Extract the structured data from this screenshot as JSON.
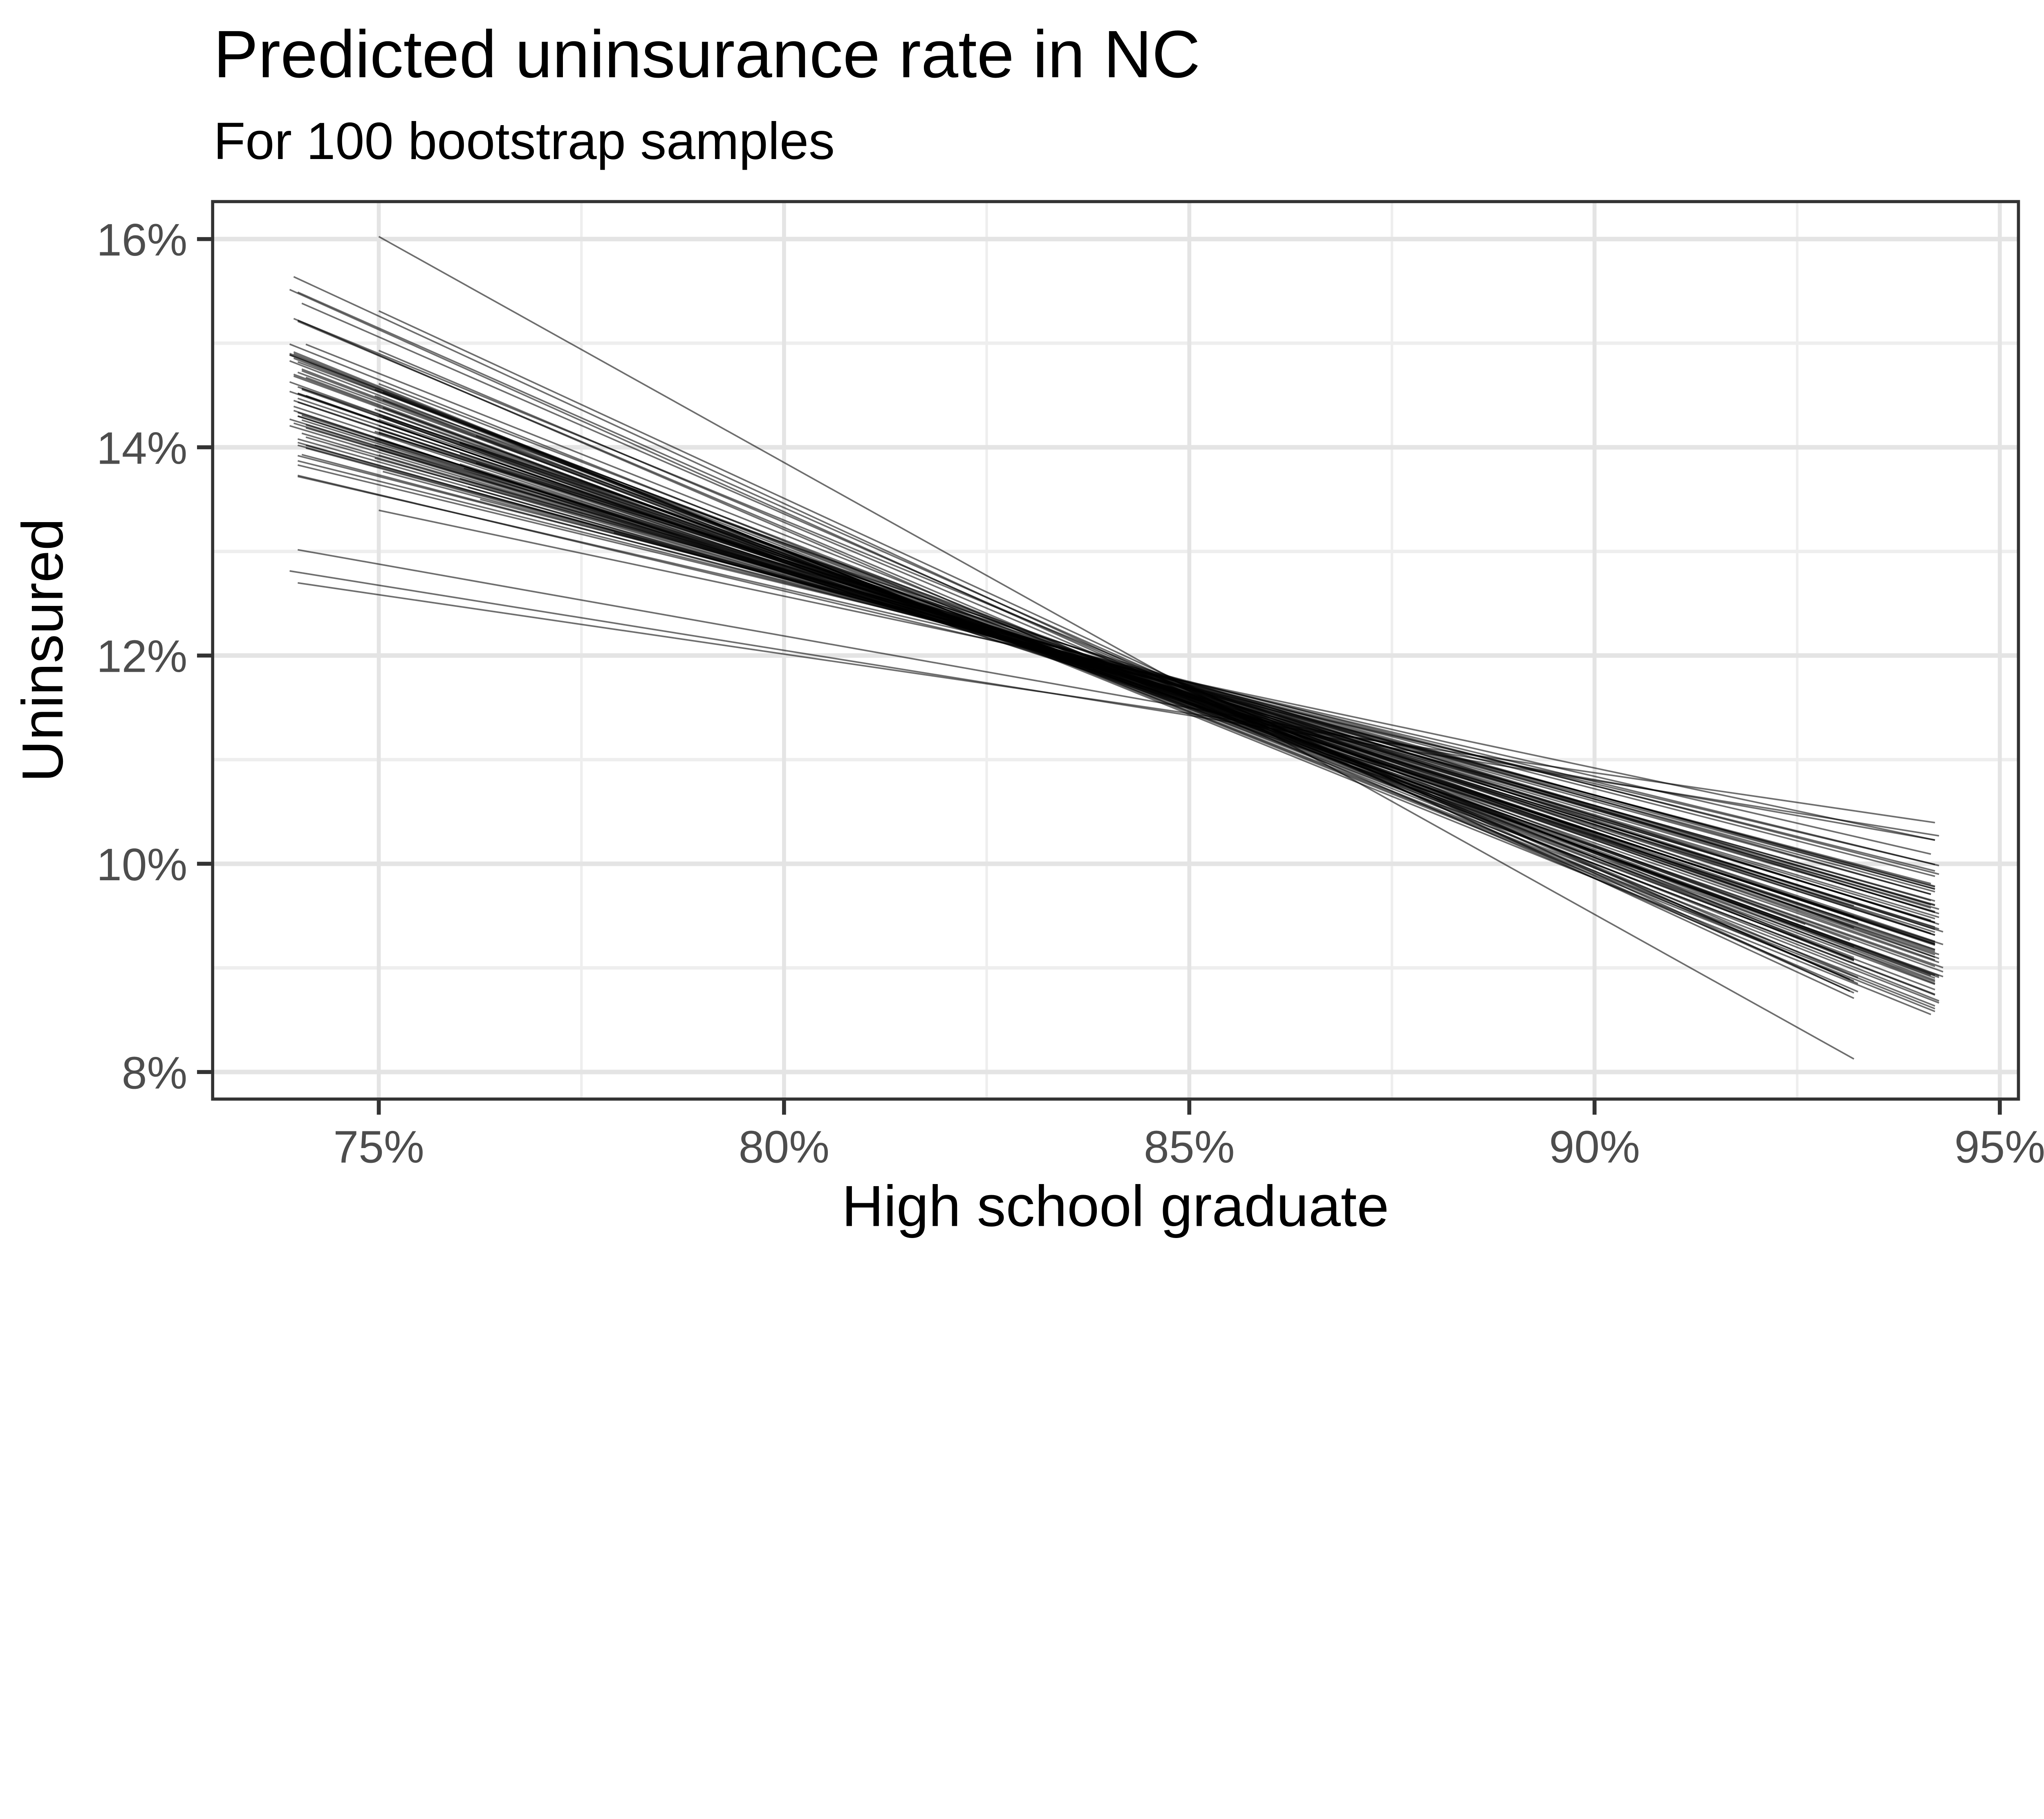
{
  "title": "Predicted uninsurance rate in NC",
  "subtitle": "For 100 bootstrap samples",
  "colors": {
    "background": "#ffffff",
    "panel_background": "#ffffff",
    "panel_border": "#333333",
    "grid_major": "#e4e4e4",
    "grid_minor": "#eeeeee",
    "tick_mark": "#333333",
    "tick_label": "#4d4d4d",
    "title_text": "#000000",
    "line_stroke": "#000000"
  },
  "chart_data": {
    "type": "line",
    "title": "Predicted uninsurance rate in NC",
    "subtitle": "For 100 bootstrap samples",
    "xlabel": "High school graduate",
    "ylabel": "Uninsured",
    "legend": "none",
    "grid": true,
    "xlim": [
      72.95,
      95.23
    ],
    "ylim": [
      7.74,
      16.36
    ],
    "x_tick_values": [
      75,
      80,
      85,
      90,
      95
    ],
    "x_tick_labels": [
      "75%",
      "80%",
      "85%",
      "90%",
      "95%"
    ],
    "x_minor_values": [
      77.5,
      82.5,
      87.5,
      92.5
    ],
    "y_tick_values": [
      8,
      10,
      12,
      14,
      16
    ],
    "y_tick_labels": [
      "8%",
      "10%",
      "12%",
      "14%",
      "16%"
    ],
    "y_minor_values": [
      9,
      11,
      13,
      15
    ],
    "n_lines": 100,
    "line_opacity": 0.57,
    "line_model": "Each bootstrap fit is a straight segment y(x) = b + m*(x - 86), drawn from x1 to x2; x and y are percentages.",
    "lines": [
      [
        73.95,
        94.2,
        11.32,
        -0.255
      ],
      [
        74.0,
        94.25,
        11.28,
        -0.27
      ],
      [
        74.1,
        94.15,
        11.45,
        -0.23
      ],
      [
        73.9,
        94.2,
        11.2,
        -0.3
      ],
      [
        74.05,
        94.3,
        11.38,
        -0.245
      ],
      [
        74.0,
        94.2,
        11.5,
        -0.21
      ],
      [
        73.95,
        94.15,
        11.25,
        -0.285
      ],
      [
        74.1,
        94.25,
        11.42,
        -0.225
      ],
      [
        74.0,
        94.2,
        11.35,
        -0.26
      ],
      [
        73.9,
        94.2,
        11.15,
        -0.31
      ],
      [
        74.05,
        94.15,
        11.48,
        -0.205
      ],
      [
        74.0,
        94.3,
        11.3,
        -0.25
      ],
      [
        73.95,
        94.2,
        11.4,
        -0.235
      ],
      [
        74.1,
        94.2,
        11.22,
        -0.29
      ],
      [
        74.0,
        94.25,
        11.55,
        -0.19
      ],
      [
        73.9,
        94.2,
        11.33,
        -0.265
      ],
      [
        74.05,
        94.2,
        11.27,
        -0.275
      ],
      [
        74.0,
        94.15,
        11.44,
        -0.22
      ],
      [
        73.95,
        94.25,
        11.18,
        -0.305
      ],
      [
        74.1,
        94.2,
        11.36,
        -0.24
      ],
      [
        74.0,
        94.2,
        11.52,
        -0.2
      ],
      [
        73.9,
        94.3,
        11.24,
        -0.28
      ],
      [
        74.05,
        94.2,
        11.41,
        -0.228
      ],
      [
        74.0,
        94.2,
        11.31,
        -0.252
      ],
      [
        73.95,
        94.15,
        11.12,
        -0.315
      ],
      [
        74.1,
        94.2,
        11.47,
        -0.212
      ],
      [
        74.0,
        94.25,
        11.29,
        -0.262
      ],
      [
        73.9,
        94.2,
        11.39,
        -0.238
      ],
      [
        74.05,
        94.2,
        11.21,
        -0.295
      ],
      [
        74.0,
        94.15,
        11.56,
        -0.18
      ],
      [
        73.95,
        94.2,
        11.34,
        -0.258
      ],
      [
        74.1,
        94.3,
        11.26,
        -0.272
      ],
      [
        74.0,
        94.2,
        11.43,
        -0.218
      ],
      [
        73.9,
        94.2,
        11.16,
        -0.308
      ],
      [
        74.05,
        94.25,
        11.37,
        -0.242
      ],
      [
        74.0,
        94.2,
        11.53,
        -0.195
      ],
      [
        73.95,
        94.2,
        11.23,
        -0.288
      ],
      [
        74.1,
        94.15,
        11.46,
        -0.215
      ],
      [
        74.0,
        94.2,
        11.3,
        -0.268
      ],
      [
        73.9,
        94.25,
        11.4,
        -0.232
      ],
      [
        74.05,
        94.2,
        11.19,
        -0.298
      ],
      [
        74.0,
        94.2,
        11.33,
        -0.114
      ],
      [
        75.0,
        94.2,
        11.35,
        -0.248
      ],
      [
        76.0,
        94.3,
        11.27,
        -0.278
      ],
      [
        75.05,
        94.2,
        11.49,
        -0.208
      ],
      [
        73.95,
        94.2,
        11.14,
        -0.312
      ],
      [
        75.0,
        94.15,
        11.38,
        -0.236
      ],
      [
        74.0,
        94.2,
        11.51,
        -0.185
      ],
      [
        74.95,
        94.25,
        11.25,
        -0.282
      ],
      [
        76.1,
        94.2,
        11.42,
        -0.222
      ],
      [
        75.0,
        94.2,
        11.33,
        -0.256
      ],
      [
        74.0,
        94.2,
        11.36,
        -0.138
      ],
      [
        74.95,
        94.2,
        11.36,
        -0.246
      ],
      [
        73.9,
        94.25,
        11.24,
        -0.31
      ],
      [
        75.0,
        94.2,
        11.45,
        -0.225
      ],
      [
        73.95,
        93.2,
        11.3,
        -0.36
      ],
      [
        74.0,
        93.25,
        11.35,
        -0.345
      ],
      [
        73.9,
        93.2,
        11.28,
        -0.35
      ],
      [
        74.05,
        93.15,
        11.32,
        -0.34
      ],
      [
        74.0,
        93.2,
        11.25,
        -0.33
      ],
      [
        73.95,
        93.2,
        11.38,
        -0.32
      ],
      [
        74.0,
        93.25,
        11.2,
        -0.335
      ],
      [
        74.1,
        93.2,
        11.3,
        -0.31
      ],
      [
        73.9,
        93.2,
        11.26,
        -0.3
      ],
      [
        74.0,
        93.15,
        11.34,
        -0.29
      ],
      [
        74.05,
        93.2,
        11.22,
        -0.28
      ],
      [
        74.0,
        93.2,
        11.4,
        -0.265
      ],
      [
        73.95,
        93.25,
        11.28,
        -0.255
      ],
      [
        74.0,
        93.2,
        11.36,
        -0.245
      ],
      [
        75.0,
        93.2,
        11.25,
        -0.434
      ],
      [
        75.0,
        93.25,
        11.3,
        -0.33
      ],
      [
        74.95,
        93.2,
        11.24,
        -0.3
      ],
      [
        75.05,
        93.2,
        11.33,
        -0.27
      ],
      [
        75.0,
        93.15,
        11.35,
        -0.36
      ],
      [
        75.0,
        94.2,
        11.31,
        -0.3
      ],
      [
        74.95,
        94.25,
        11.4,
        -0.28
      ],
      [
        75.05,
        94.2,
        11.28,
        -0.29
      ],
      [
        75.0,
        94.15,
        11.45,
        -0.26
      ],
      [
        75.0,
        94.2,
        11.33,
        -0.275
      ],
      [
        74.95,
        94.2,
        11.5,
        -0.24
      ],
      [
        75.05,
        94.25,
        11.26,
        -0.285
      ],
      [
        75.0,
        94.2,
        11.42,
        -0.25
      ],
      [
        75.0,
        94.2,
        11.35,
        -0.265
      ],
      [
        74.95,
        94.15,
        11.48,
        -0.23
      ],
      [
        75.05,
        94.2,
        11.3,
        -0.295
      ],
      [
        75.0,
        94.25,
        11.44,
        -0.245
      ],
      [
        75.0,
        94.2,
        11.37,
        -0.258
      ],
      [
        74.95,
        94.2,
        11.52,
        -0.215
      ],
      [
        76.0,
        94.2,
        11.34,
        -0.27
      ],
      [
        76.05,
        94.25,
        11.46,
        -0.235
      ],
      [
        76.2,
        94.2,
        11.29,
        -0.288
      ],
      [
        76.0,
        94.15,
        11.5,
        -0.22
      ],
      [
        76.2,
        94.2,
        11.38,
        -0.252
      ],
      [
        76.0,
        94.2,
        11.42,
        -0.242
      ],
      [
        76.25,
        94.25,
        11.55,
        -0.2
      ],
      [
        76.0,
        94.2,
        11.32,
        -0.262
      ],
      [
        77.9,
        94.2,
        11.48,
        -0.21
      ],
      [
        74.0,
        92.6,
        11.3,
        -0.285
      ],
      [
        75.0,
        94.2,
        11.58,
        -0.165
      ],
      [
        73.9,
        94.25,
        11.3,
        -0.125
      ]
    ]
  }
}
